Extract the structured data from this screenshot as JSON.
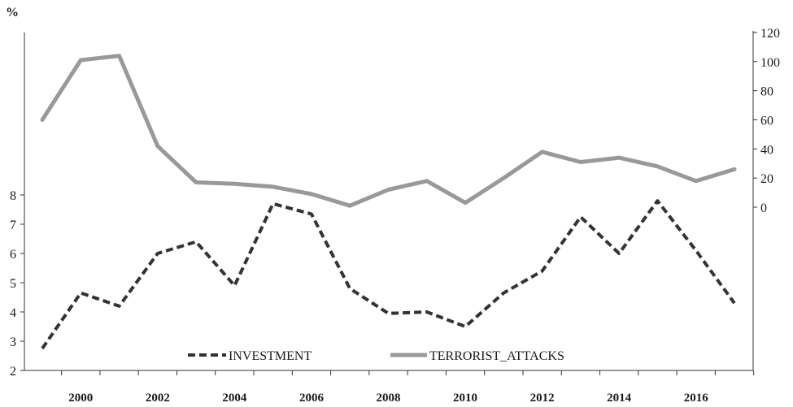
{
  "chart_data": {
    "type": "line",
    "y_unit_label": "%",
    "x": [
      1999,
      2000,
      2001,
      2002,
      2003,
      2004,
      2005,
      2006,
      2007,
      2008,
      2009,
      2010,
      2011,
      2012,
      2013,
      2014,
      2015,
      2016,
      2017
    ],
    "x_tick_labels": [
      "2000",
      "2002",
      "2004",
      "2006",
      "2008",
      "2010",
      "2012",
      "2014",
      "2016"
    ],
    "series": [
      {
        "name": "INVESTMENT",
        "axis": "left",
        "style": "dashed",
        "color": "#333333",
        "values": [
          2.75,
          4.65,
          4.2,
          6.0,
          6.4,
          4.9,
          7.7,
          7.35,
          4.8,
          3.95,
          4.0,
          3.5,
          4.65,
          5.4,
          7.25,
          6.0,
          7.8,
          6.1,
          4.3
        ]
      },
      {
        "name": "TERRORIST_ATTACKS",
        "axis": "right",
        "style": "solid",
        "color": "#999999",
        "values": [
          60,
          101,
          104,
          42,
          17,
          16,
          14,
          9,
          1,
          12,
          18,
          3,
          20,
          38,
          31,
          34,
          28,
          18,
          26
        ]
      }
    ],
    "left_axis": {
      "ticks": [
        "2",
        "3",
        "4",
        "5",
        "6",
        "7",
        "8"
      ],
      "range": [
        2,
        8
      ]
    },
    "right_axis": {
      "ticks": [
        "0",
        "20",
        "40",
        "60",
        "80",
        "100",
        "120"
      ],
      "range": [
        0,
        120
      ]
    },
    "legend_position": "bottom-center",
    "grid": false
  }
}
